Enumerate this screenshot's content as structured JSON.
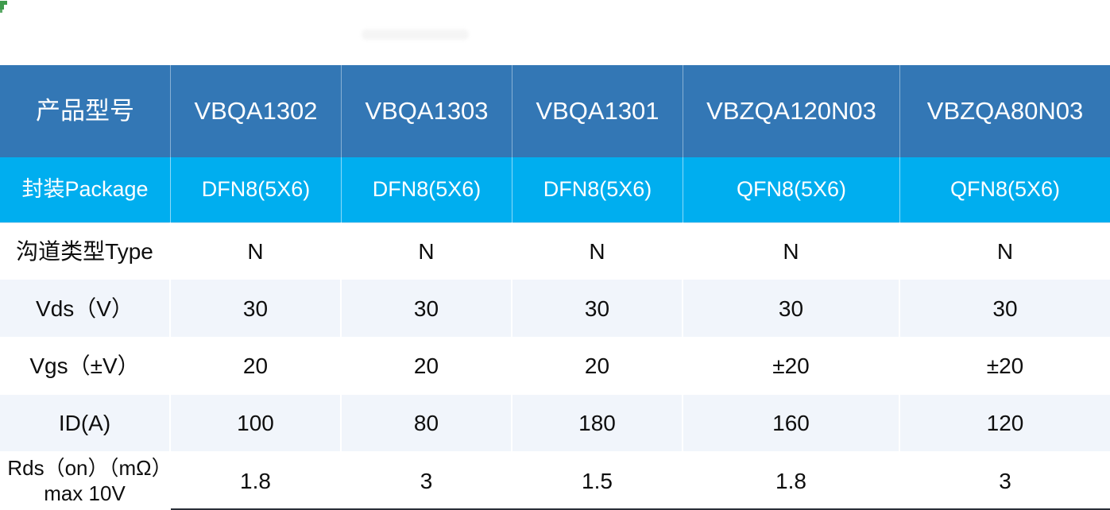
{
  "page": {
    "background": "#ffffff"
  },
  "table": {
    "columns": [
      "产品型号",
      "VBQA1302",
      "VBQA1303",
      "VBQA1301",
      "VBZQA120N03",
      "VBZQA80N03"
    ],
    "rows": [
      {
        "label": "封装Package",
        "values": [
          "DFN8(5X6)",
          "DFN8(5X6)",
          "DFN8(5X6)",
          "QFN8(5X6)",
          "QFN8(5X6)"
        ]
      },
      {
        "label": "沟道类型Type",
        "values": [
          "N",
          "N",
          "N",
          "N",
          "N"
        ]
      },
      {
        "label": "Vds（V）",
        "values": [
          "30",
          "30",
          "30",
          "30",
          "30"
        ]
      },
      {
        "label": "Vgs（±V）",
        "values": [
          "20",
          "20",
          "20",
          "±20",
          "±20"
        ]
      },
      {
        "label": "ID(A)",
        "values": [
          "100",
          "80",
          "180",
          "160",
          "120"
        ]
      },
      {
        "label": "Rds（on）（mΩ）max 10V",
        "values": [
          "1.8",
          "3",
          "1.5",
          "1.8",
          "3"
        ]
      }
    ],
    "colors": {
      "header_bg": "#3377b5",
      "header_text": "#ffffff",
      "package_bg": "#00aeef",
      "package_text": "#ffffff",
      "light_row_bg": "#f1f5fb",
      "body_text": "#0e0e0e",
      "corner_mark": "#3f9b4c"
    }
  }
}
